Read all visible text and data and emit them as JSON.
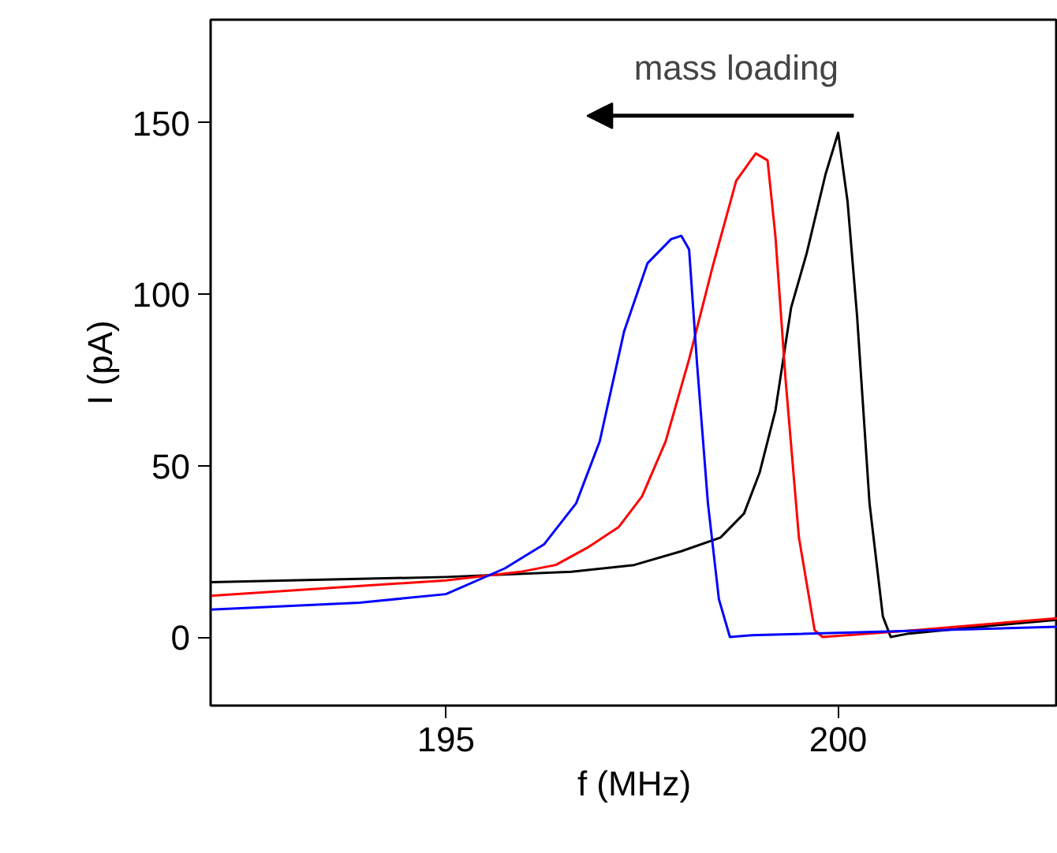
{
  "chart_data": {
    "type": "line",
    "xlabel": "f (MHz)",
    "ylabel": "I (pA)",
    "annotations": [
      "mass loading"
    ],
    "xlim": [
      192,
      202.8
    ],
    "ylim": [
      -20,
      180
    ],
    "xticks": [
      195,
      200
    ],
    "yticks": [
      0,
      50,
      100,
      150
    ],
    "marker": "none",
    "line_style": "solid",
    "series": [
      {
        "color": "#000000",
        "x": [
          192,
          195,
          196.6,
          197.4,
          198,
          198.5,
          198.8,
          199,
          199.2,
          199.4,
          199.6,
          199.84,
          200,
          200.12,
          200.24,
          200.4,
          200.57,
          200.67,
          200.9,
          201.8,
          202.8
        ],
        "values": [
          16,
          17.5,
          19,
          21,
          25,
          29,
          36,
          48,
          66,
          96,
          112,
          135,
          147,
          127,
          94,
          39,
          6,
          0,
          1,
          3,
          5
        ]
      },
      {
        "color": "#ff0000",
        "x": [
          192,
          195,
          195.95,
          196.4,
          196.8,
          197.2,
          197.5,
          197.8,
          198.1,
          198.4,
          198.7,
          198.95,
          199.1,
          199.2,
          199.33,
          199.5,
          199.7,
          199.8,
          201,
          202.8
        ],
        "values": [
          12,
          16.5,
          19,
          21,
          26,
          32,
          41,
          57,
          81,
          108,
          133,
          141,
          139,
          117,
          75,
          29,
          2,
          0,
          2,
          5.5
        ]
      },
      {
        "color": "#0000ff",
        "x": [
          192,
          193.9,
          195,
          195.75,
          196.25,
          196.66,
          196.96,
          197.27,
          197.57,
          197.87,
          198,
          198.1,
          198.2,
          198.34,
          198.48,
          198.62,
          198.9,
          202.8
        ],
        "values": [
          8,
          10,
          12.5,
          20,
          27,
          39,
          57,
          89,
          109,
          116,
          117,
          113,
          80,
          39,
          11,
          0,
          0.5,
          3
        ]
      }
    ]
  }
}
